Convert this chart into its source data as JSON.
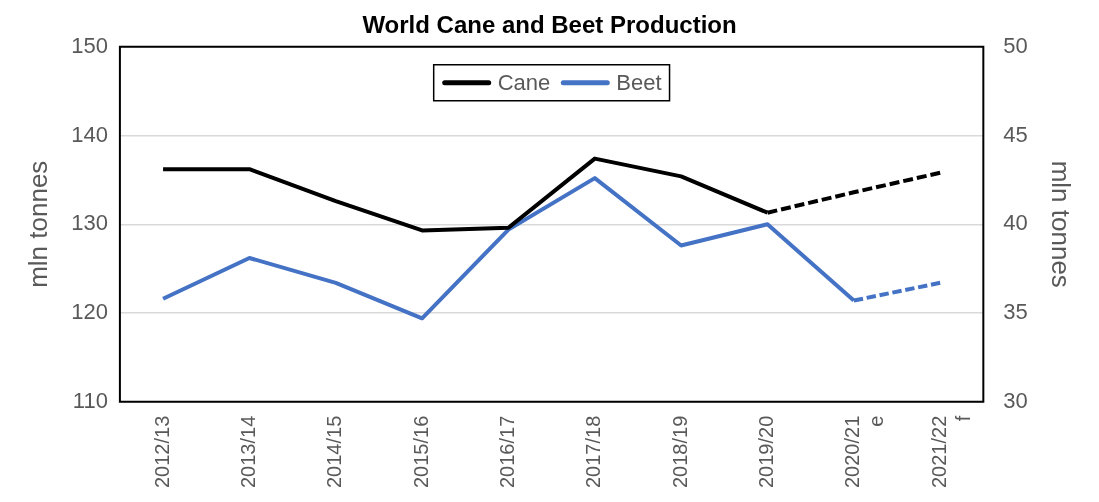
{
  "chart_data": {
    "type": "line",
    "title": "World Cane and Beet Production",
    "categories": [
      "2012/13",
      "2013/14",
      "2014/15",
      "2015/16",
      "2016/17",
      "2017/18",
      "2018/19",
      "2019/20",
      "2020/21\ne",
      "2021/22\nf"
    ],
    "series": [
      {
        "name": "Cane",
        "color": "#000000",
        "values": [
          136.2,
          136.2,
          132.6,
          129.3,
          129.6,
          137.4,
          135.4,
          131.3,
          null,
          null
        ]
      },
      {
        "color": "#000000",
        "line_style": "dashed",
        "values": [
          null,
          null,
          null,
          null,
          null,
          null,
          null,
          131.3,
          133.6,
          135.8
        ]
      },
      {
        "name": "Beet",
        "color": "#4472c4",
        "axis": "y2",
        "values": [
          35.8,
          38.1,
          36.7,
          34.7,
          39.7,
          42.6,
          38.8,
          40.0,
          35.7,
          null
        ]
      },
      {
        "color": "#4472c4",
        "axis": "y2",
        "line_style": "dashed",
        "values": [
          null,
          null,
          null,
          null,
          null,
          null,
          null,
          null,
          35.7,
          36.7
        ]
      }
    ],
    "ylabel": "mln tonnes",
    "y2label": "mln tonnes",
    "ylim": [
      110,
      150
    ],
    "yticks": [
      110,
      120,
      130,
      140,
      150
    ],
    "y2lim": [
      30,
      50
    ],
    "y2ticks": [
      30,
      35,
      40,
      45,
      50
    ],
    "grid": "y",
    "legend": "top",
    "marker": "none",
    "line_style": "solid"
  }
}
